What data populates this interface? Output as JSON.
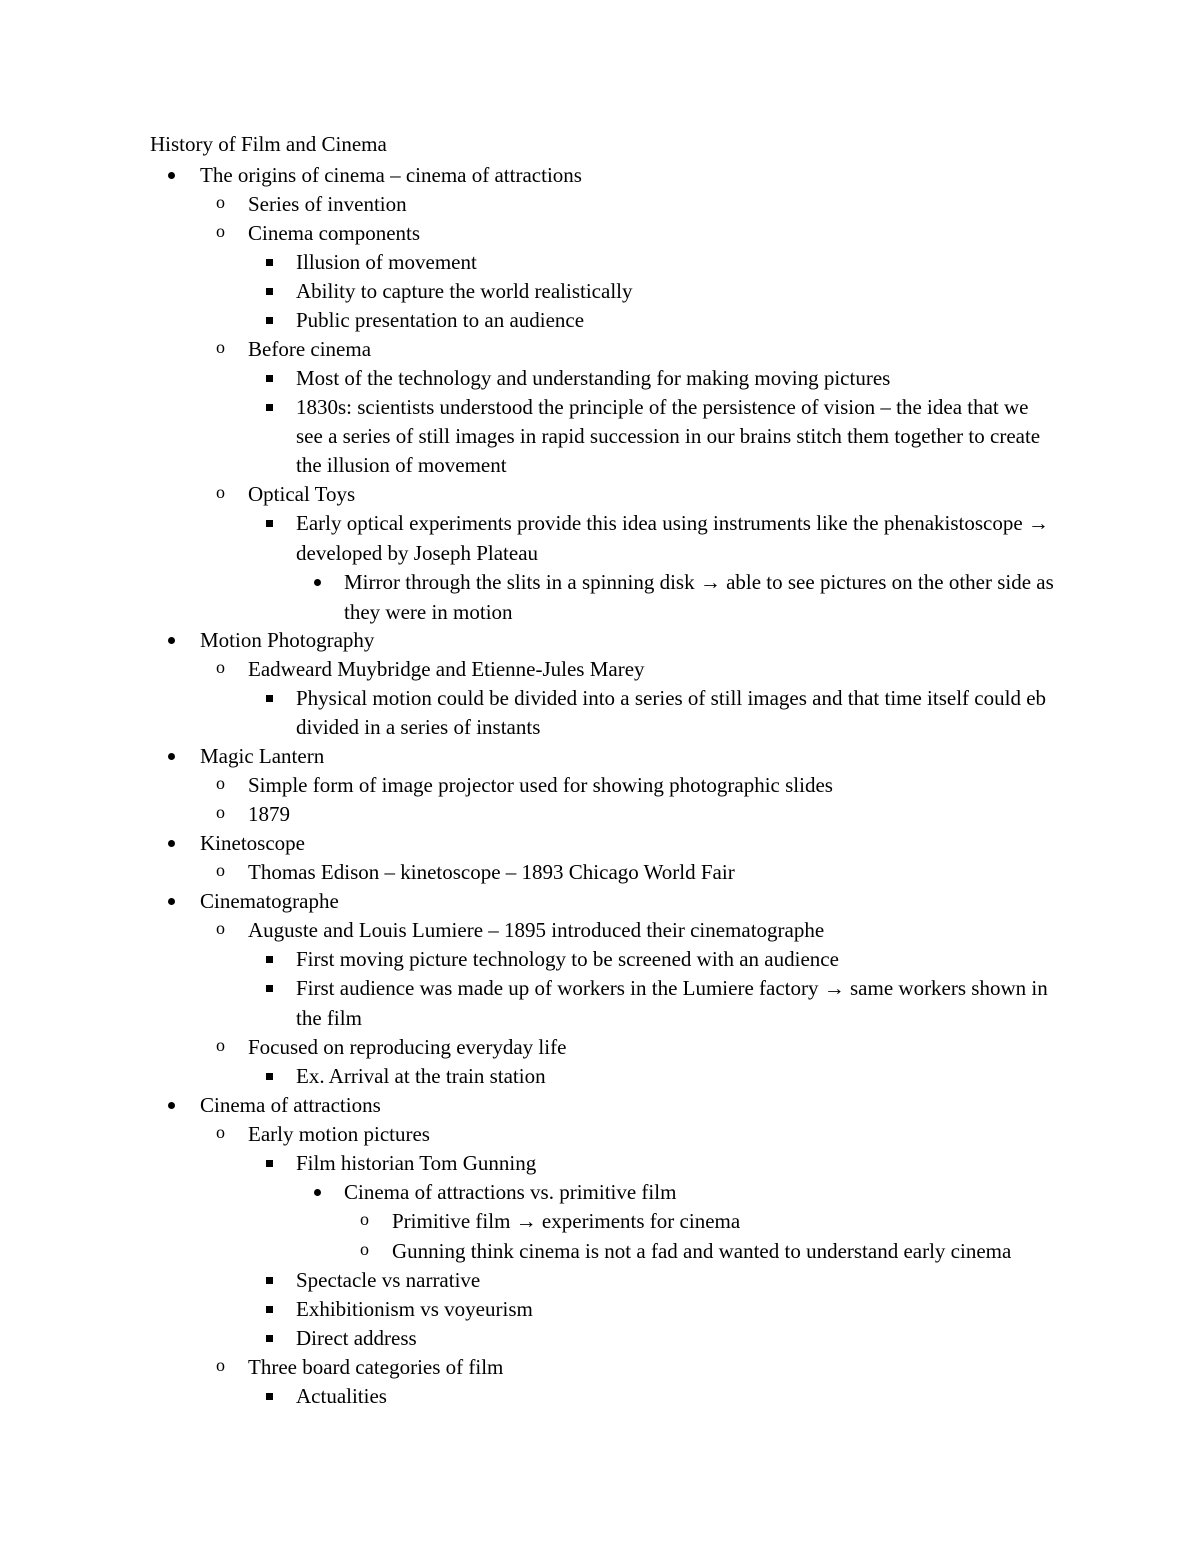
{
  "title": "History of Film and Cinema",
  "outline": [
    {
      "text": "The origins of cinema – cinema of attractions",
      "children": [
        {
          "text": "Series of invention"
        },
        {
          "text": "Cinema components",
          "children": [
            {
              "text": "Illusion of movement"
            },
            {
              "text": "Ability to capture the world realistically"
            },
            {
              "text": "Public presentation to an audience"
            }
          ]
        },
        {
          "text": "Before cinema",
          "children": [
            {
              "text": "Most of the technology and understanding for making moving pictures"
            },
            {
              "text": "1830s: scientists understood the principle of the persistence of vision – the idea that we see a series of still images in rapid succession in our brains stitch them together to create the illusion of movement"
            }
          ]
        },
        {
          "text": "Optical Toys",
          "children": [
            {
              "text": "Early optical experiments provide this idea using instruments like the phenakistoscope → developed by Joseph Plateau",
              "children": [
                {
                  "text": "Mirror through the slits in a spinning disk → able to see pictures on the other side as they were in motion"
                }
              ]
            }
          ]
        }
      ]
    },
    {
      "text": "Motion Photography",
      "children": [
        {
          "text": "Eadweard Muybridge and Etienne-Jules Marey",
          "children": [
            {
              "text": "Physical motion could be divided into a series of still images and that time itself could eb divided in a series of instants"
            }
          ]
        }
      ]
    },
    {
      "text": "Magic Lantern",
      "children": [
        {
          "text": "Simple form of image projector used for showing photographic slides"
        },
        {
          "text": "1879"
        }
      ]
    },
    {
      "text": "Kinetoscope",
      "children": [
        {
          "text": "Thomas Edison – kinetoscope – 1893 Chicago World Fair"
        }
      ]
    },
    {
      "text": "Cinematographe",
      "children": [
        {
          "text": "Auguste and Louis Lumiere – 1895 introduced their cinematographe",
          "children": [
            {
              "text": "First moving picture technology to be screened with an audience"
            },
            {
              "text": "First audience was made up of workers in the Lumiere factory → same workers shown in the film"
            }
          ]
        },
        {
          "text": "Focused on reproducing everyday life",
          "children": [
            {
              "text": "Ex. Arrival at the train station"
            }
          ]
        }
      ]
    },
    {
      "text": "Cinema of attractions",
      "children": [
        {
          "text": "Early motion pictures",
          "children": [
            {
              "text": "Film historian Tom Gunning",
              "children": [
                {
                  "text": "Cinema of attractions vs. primitive film",
                  "children": [
                    {
                      "text": "Primitive film → experiments for cinema"
                    },
                    {
                      "text": "Gunning think cinema is not a fad and wanted to understand early cinema"
                    }
                  ]
                }
              ]
            },
            {
              "text": "Spectacle vs narrative"
            },
            {
              "text": "Exhibitionism vs voyeurism"
            },
            {
              "text": "Direct address"
            }
          ]
        },
        {
          "text": "Three board categories of film",
          "children": [
            {
              "text": "Actualities"
            }
          ]
        }
      ]
    }
  ]
}
